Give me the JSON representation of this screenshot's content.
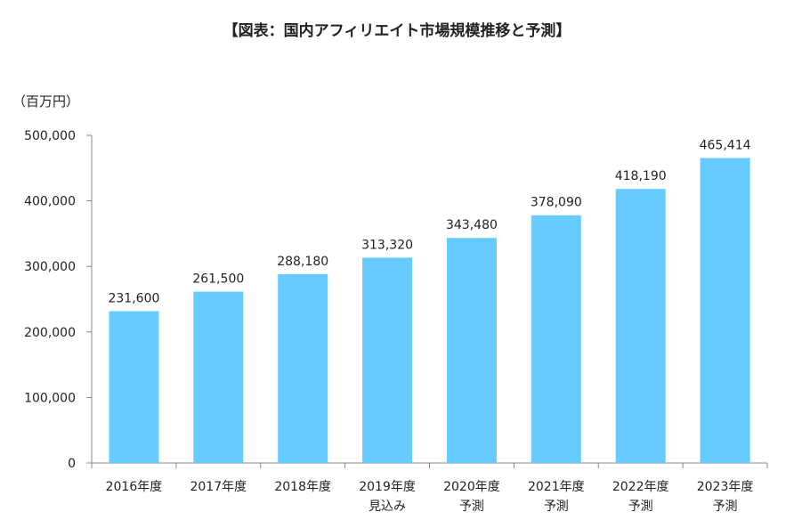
{
  "chart_data": {
    "type": "bar",
    "title": "【図表：国内アフィリエイト市場規模推移と予測】",
    "unit_label": "（百万円）",
    "categories": [
      [
        "2016年度"
      ],
      [
        "2017年度"
      ],
      [
        "2018年度"
      ],
      [
        "2019年度",
        "見込み"
      ],
      [
        "2020年度",
        "予測"
      ],
      [
        "2021年度",
        "予測"
      ],
      [
        "2022年度",
        "予測"
      ],
      [
        "2023年度",
        "予測"
      ]
    ],
    "values": [
      231600,
      261500,
      288180,
      313320,
      343480,
      378090,
      418190,
      465414
    ],
    "value_labels": [
      "231,600",
      "261,500",
      "288,180",
      "313,320",
      "343,480",
      "378,090",
      "418,190",
      "465,414"
    ],
    "ylim": [
      0,
      500000
    ],
    "yticks": [
      0,
      100000,
      200000,
      300000,
      400000,
      500000
    ],
    "ytick_labels": [
      "0",
      "100,000",
      "200,000",
      "300,000",
      "400,000",
      "500,000"
    ],
    "bar_color": "#66ccff",
    "axis_color": "#888888",
    "grid": false,
    "legend": "none"
  }
}
